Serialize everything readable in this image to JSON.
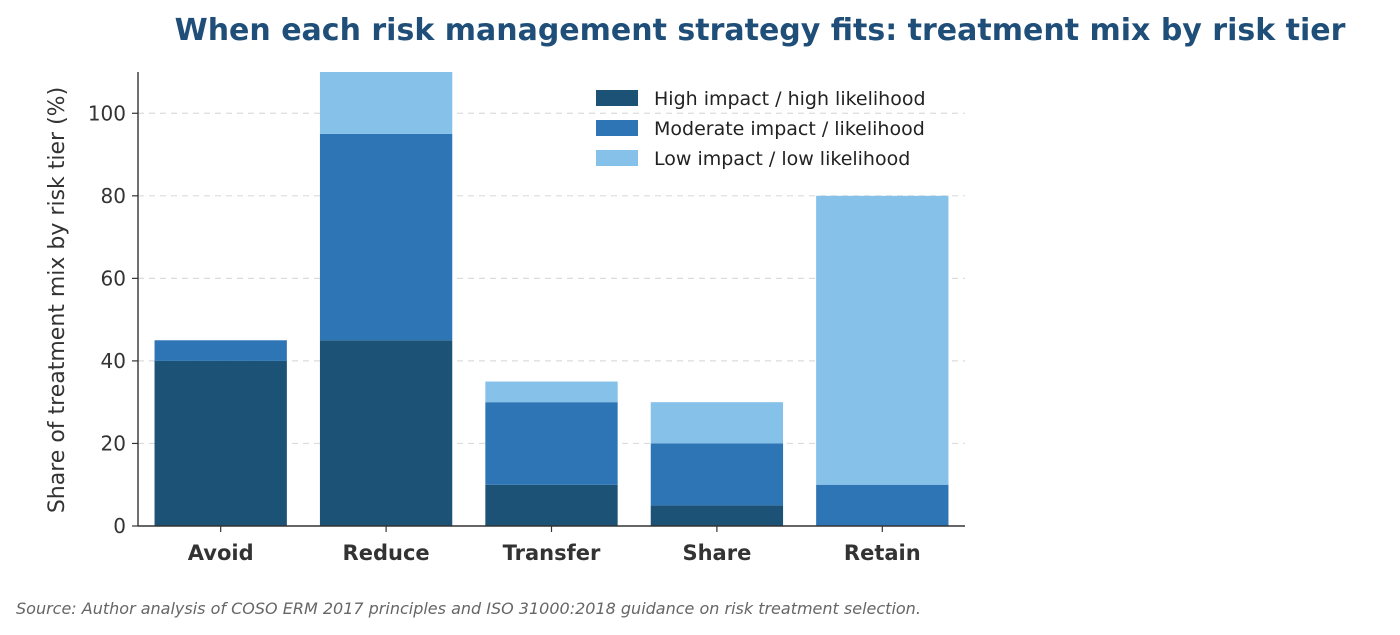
{
  "chart_data": {
    "type": "bar",
    "stacked": true,
    "title": "When each risk management strategy fits: treatment mix by risk tier",
    "xlabel": "",
    "ylabel": "Share of treatment mix by risk tier (%)",
    "categories": [
      "Avoid",
      "Reduce",
      "Transfer",
      "Share",
      "Retain"
    ],
    "series": [
      {
        "name": "High impact / high likelihood",
        "values": [
          40,
          45,
          10,
          5,
          0
        ],
        "color": "#1b5276"
      },
      {
        "name": "Moderate impact / likelihood",
        "values": [
          5,
          50,
          20,
          15,
          10
        ],
        "color": "#2e75b6"
      },
      {
        "name": "Low impact / low likelihood",
        "values": [
          0,
          15,
          5,
          10,
          70
        ],
        "color": "#85c1e9"
      }
    ],
    "ylim": [
      0,
      110
    ],
    "yticks": [
      0,
      20,
      40,
      60,
      80,
      100
    ],
    "grid": {
      "y": true,
      "style": "dashed"
    },
    "legend_position": "top-right",
    "source": "Source: Author analysis of COSO ERM 2017 principles and ISO 31000:2018 guidance on risk treatment selection."
  }
}
